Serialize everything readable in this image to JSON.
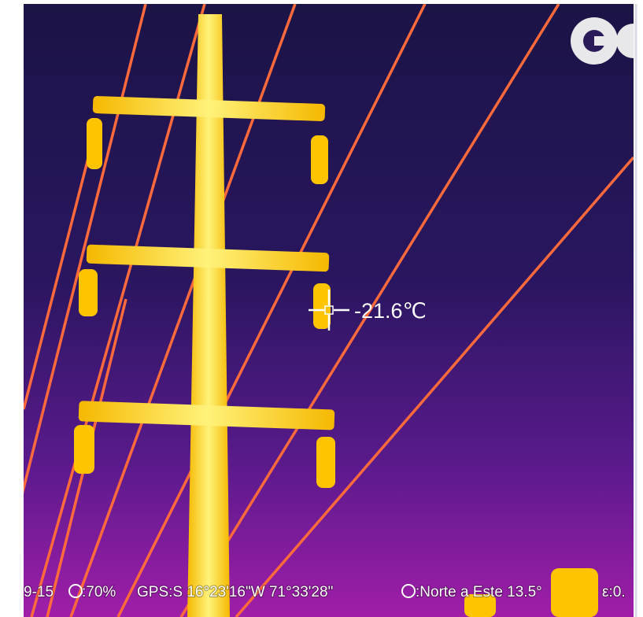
{
  "measurement": {
    "temperature": "-21.6℃"
  },
  "status_bar": [
    "9-15",
    ":70%",
    "GPS:S 16°23'16\"W 71°33'28\"",
    ":Norte a Este 13.5°",
    "ε:0."
  ]
}
